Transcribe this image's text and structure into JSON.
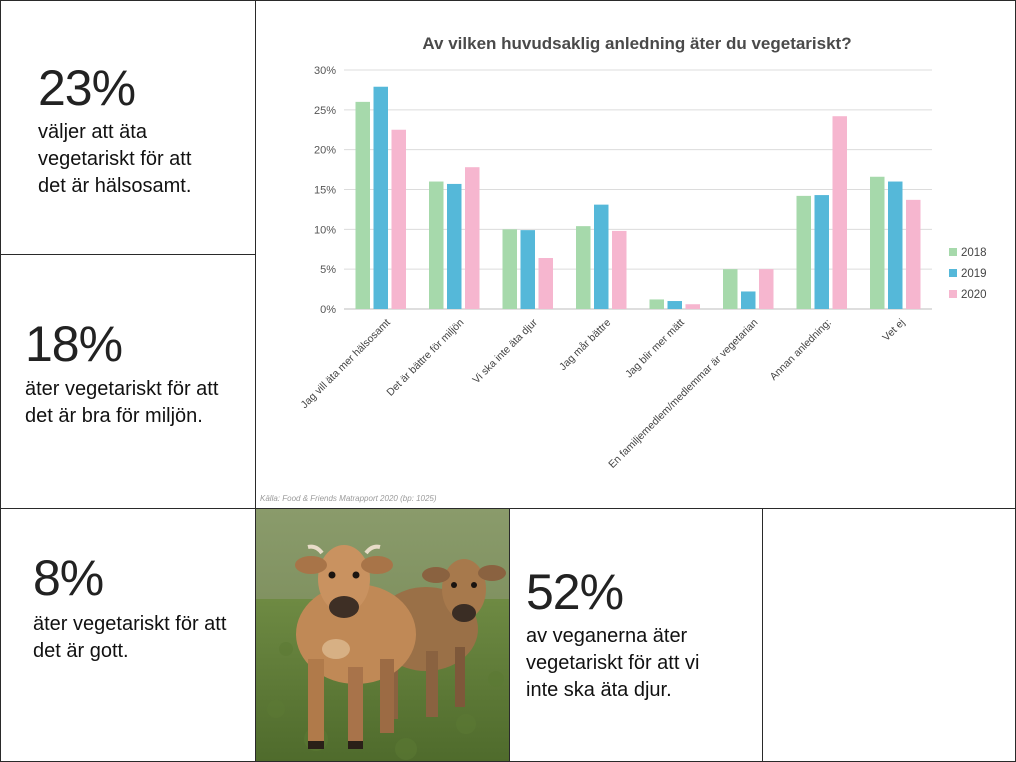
{
  "stats": [
    {
      "value": "23%",
      "lines": [
        "väljer att äta",
        "vegetariskt för att",
        "det är hälsosamt."
      ]
    },
    {
      "value": "18%",
      "lines": [
        "äter vegetariskt för att",
        "det är bra för miljön."
      ]
    },
    {
      "value": "8%",
      "lines": [
        "äter vegetariskt för att",
        "det är gott."
      ]
    },
    {
      "value": "52%",
      "lines": [
        "av veganerna äter",
        "vegetariskt för att vi",
        "inte ska äta djur."
      ]
    }
  ],
  "source": "Källa: Food & Friends Matrapport 2020  (bp: 1025)",
  "photo": {
    "icon": "cows-photo"
  },
  "colors": {
    "s2018": "#a6d9ab",
    "s2019": "#55b8d9",
    "s2020": "#f6b6cf",
    "grid": "#dcdcdc",
    "axis": "#555555"
  },
  "chart_data": {
    "type": "bar",
    "title": "Av vilken huvudsaklig anledning äter du vegetariskt?",
    "categories": [
      "Jag vill äta mer hälsosamt",
      "Det är bättre för miljön",
      "Vi ska inte äta djur",
      "Jag mår bättre",
      "Jag blir mer mätt",
      "En familjemedlem/medlemmar är vegetarian",
      "Annan anledning:",
      "Vet ej"
    ],
    "series": [
      {
        "name": "2018",
        "values": [
          26,
          16,
          10,
          10.4,
          1.2,
          5,
          14.2,
          16.6
        ]
      },
      {
        "name": "2019",
        "values": [
          27.9,
          15.7,
          9.9,
          13.1,
          1,
          2.2,
          14.3,
          16
        ]
      },
      {
        "name": "2020",
        "values": [
          22.5,
          17.8,
          6.4,
          9.8,
          0.6,
          5,
          24.2,
          13.7
        ]
      }
    ],
    "ylim": [
      0,
      30
    ],
    "yticks": [
      "0%",
      "5%",
      "10%",
      "15%",
      "20%",
      "25%",
      "30%"
    ],
    "grid": true,
    "legend": "right"
  }
}
